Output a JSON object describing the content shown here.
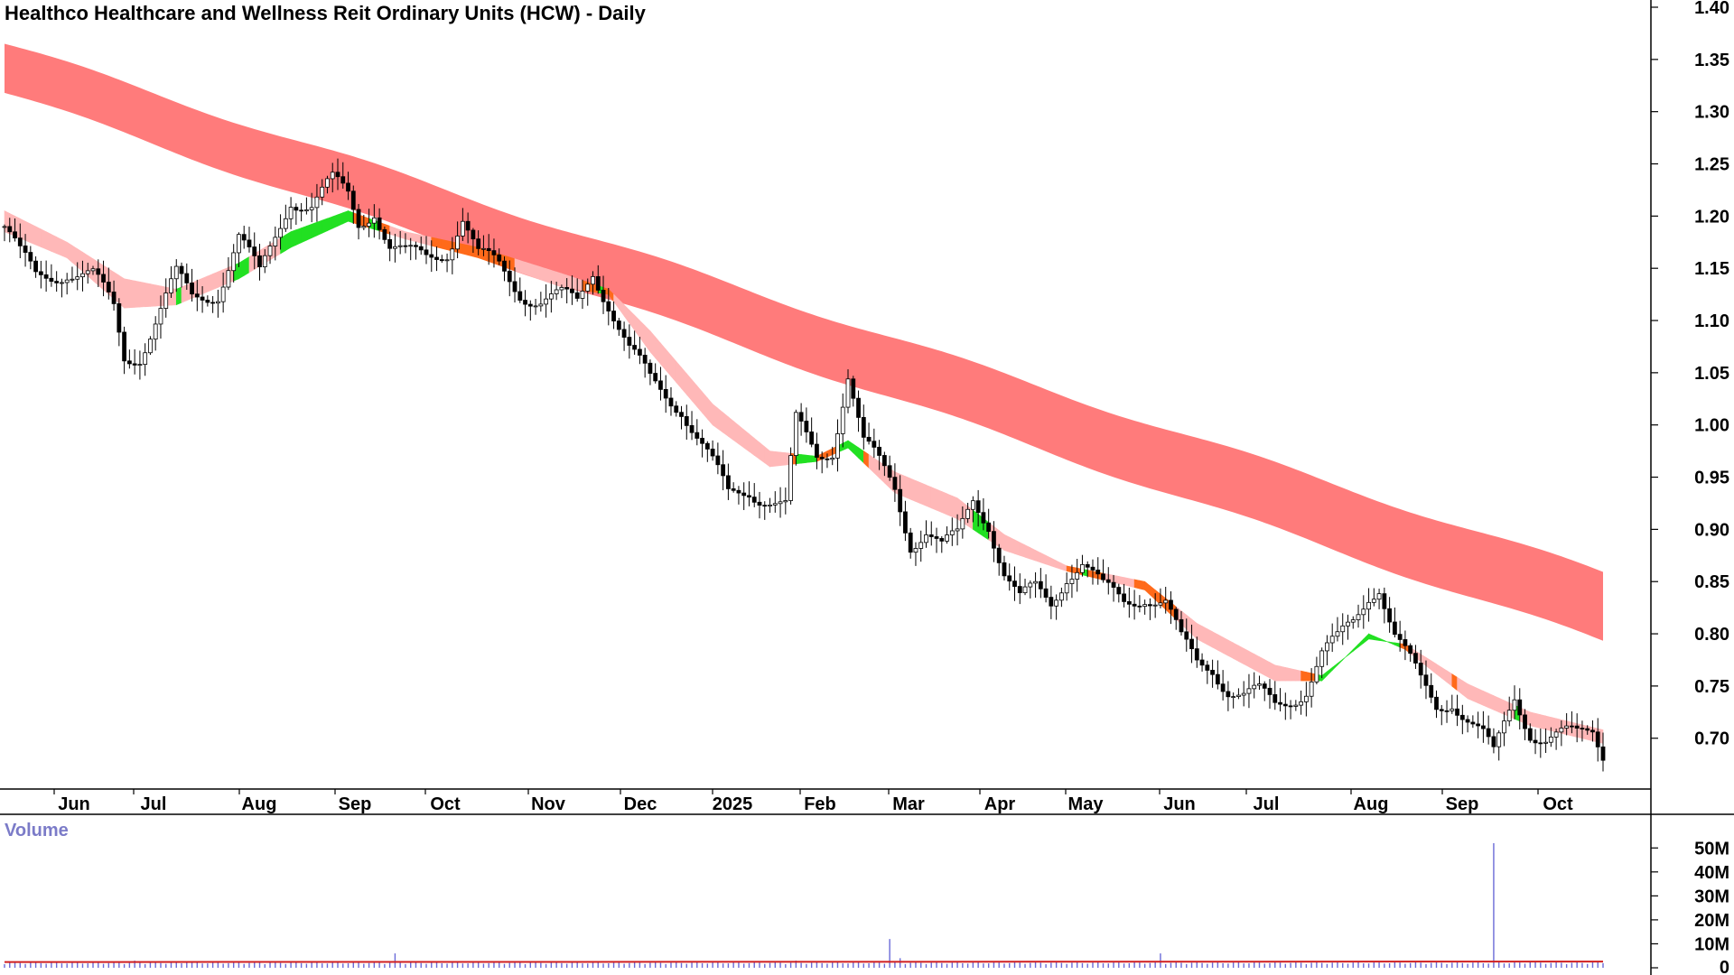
{
  "chart_data": [
    {
      "type": "candlestick",
      "title": "Healthco Healthcare and Wellness Reit Ordinary Units (HCW) - Daily",
      "ylim": [
        0.66,
        1.4
      ],
      "y_ticks": [
        "1.40",
        "1.35",
        "1.30",
        "1.25",
        "1.20",
        "1.15",
        "1.10",
        "1.05",
        "1.00",
        "0.95",
        "0.90",
        "0.85",
        "0.80",
        "0.75",
        "0.70"
      ],
      "y_tick_values": [
        1.4,
        1.35,
        1.3,
        1.25,
        1.2,
        1.15,
        1.1,
        1.05,
        1.0,
        0.95,
        0.9,
        0.85,
        0.8,
        0.75,
        0.7
      ],
      "x_ticks": [
        "Jun",
        "Jul",
        "Aug",
        "Sep",
        "Oct",
        "Nov",
        "Dec",
        "2025",
        "Feb",
        "Mar",
        "Apr",
        "May",
        "Jun",
        "Jul",
        "Aug",
        "Sep",
        "Oct"
      ],
      "colors": {
        "long_band": "#ff7b7b",
        "short_band": "#ffb8b8",
        "bullish_ribbon": "#22e022",
        "bearish_ribbon": "#ff6a1a",
        "candle": "#000000"
      },
      "price_path": [
        [
          0,
          1.19
        ],
        [
          3,
          1.16
        ],
        [
          6,
          1.14
        ],
        [
          12,
          1.15
        ],
        [
          17,
          1.14
        ],
        [
          21,
          1.11
        ],
        [
          23,
          1.065
        ],
        [
          26,
          1.07
        ],
        [
          29,
          1.1
        ],
        [
          33,
          1.14
        ],
        [
          36,
          1.12
        ],
        [
          41,
          1.13
        ],
        [
          45,
          1.18
        ],
        [
          49,
          1.14
        ],
        [
          52,
          1.18
        ],
        [
          55,
          1.22
        ],
        [
          59,
          1.21
        ],
        [
          63,
          1.23
        ],
        [
          66,
          1.22
        ],
        [
          68,
          1.195
        ],
        [
          71,
          1.21
        ],
        [
          74,
          1.17
        ],
        [
          77,
          1.16
        ],
        [
          81,
          1.16
        ],
        [
          85,
          1.17
        ],
        [
          88,
          1.2
        ],
        [
          91,
          1.16
        ],
        [
          95,
          1.15
        ],
        [
          99,
          1.13
        ],
        [
          103,
          1.12
        ],
        [
          107,
          1.12
        ],
        [
          110,
          1.115
        ],
        [
          113,
          1.15
        ],
        [
          116,
          1.12
        ],
        [
          120,
          1.07
        ],
        [
          124,
          1.04
        ],
        [
          127,
          1.03
        ],
        [
          130,
          1.02
        ],
        [
          133,
          0.99
        ],
        [
          136,
          0.96
        ],
        [
          139,
          0.93
        ],
        [
          143,
          0.94
        ],
        [
          147,
          0.93
        ],
        [
          150,
          0.92
        ],
        [
          152,
          1.0
        ],
        [
          156,
          0.97
        ],
        [
          159,
          0.98
        ],
        [
          162,
          1.05
        ],
        [
          165,
          0.98
        ],
        [
          168,
          0.96
        ],
        [
          171,
          0.94
        ],
        [
          174,
          0.89
        ],
        [
          177,
          0.9
        ],
        [
          180,
          0.88
        ],
        [
          183,
          0.89
        ],
        [
          186,
          0.93
        ],
        [
          189,
          0.91
        ],
        [
          192,
          0.86
        ],
        [
          195,
          0.83
        ],
        [
          198,
          0.84
        ],
        [
          201,
          0.83
        ],
        [
          204,
          0.86
        ],
        [
          207,
          0.87
        ],
        [
          211,
          0.84
        ],
        [
          215,
          0.83
        ],
        [
          219,
          0.84
        ],
        [
          223,
          0.83
        ],
        [
          226,
          0.79
        ],
        [
          229,
          0.77
        ],
        [
          232,
          0.77
        ],
        [
          235,
          0.75
        ],
        [
          238,
          0.74
        ],
        [
          241,
          0.74
        ],
        [
          244,
          0.73
        ],
        [
          247,
          0.74
        ],
        [
          250,
          0.75
        ],
        [
          253,
          0.78
        ],
        [
          256,
          0.79
        ],
        [
          259,
          0.81
        ],
        [
          262,
          0.84
        ],
        [
          264,
          0.85
        ],
        [
          267,
          0.8
        ],
        [
          269,
          0.78
        ],
        [
          272,
          0.75
        ],
        [
          275,
          0.73
        ],
        [
          278,
          0.74
        ],
        [
          281,
          0.72
        ],
        [
          284,
          0.7
        ],
        [
          286,
          0.68
        ],
        [
          288,
          0.71
        ],
        [
          290,
          0.74
        ],
        [
          293,
          0.71
        ],
        [
          296,
          0.7
        ],
        [
          299,
          0.7
        ],
        [
          302,
          0.7
        ],
        [
          305,
          0.71
        ],
        [
          307,
          0.69
        ]
      ],
      "long_band": {
        "upper_start": 1.365,
        "upper_end": 0.858,
        "lower_start": 1.318,
        "lower_end": 0.792
      },
      "short_band": {
        "points": [
          [
            0,
            1.205,
            1.185
          ],
          [
            12,
            1.175,
            1.16
          ],
          [
            23,
            1.14,
            1.112
          ],
          [
            33,
            1.13,
            1.115
          ],
          [
            45,
            1.155,
            1.14
          ],
          [
            55,
            1.185,
            1.17
          ],
          [
            66,
            1.205,
            1.195
          ],
          [
            77,
            1.185,
            1.178
          ],
          [
            91,
            1.17,
            1.16
          ],
          [
            107,
            1.145,
            1.132
          ],
          [
            116,
            1.13,
            1.125
          ],
          [
            124,
            1.09,
            1.07
          ],
          [
            136,
            1.02,
            1.0
          ],
          [
            147,
            0.975,
            0.96
          ],
          [
            156,
            0.97,
            0.965
          ],
          [
            162,
            0.985,
            0.978
          ],
          [
            171,
            0.955,
            0.935
          ],
          [
            183,
            0.93,
            0.91
          ],
          [
            192,
            0.895,
            0.88
          ],
          [
            204,
            0.865,
            0.86
          ],
          [
            219,
            0.85,
            0.842
          ],
          [
            229,
            0.81,
            0.795
          ],
          [
            244,
            0.77,
            0.755
          ],
          [
            253,
            0.76,
            0.755
          ],
          [
            262,
            0.795,
            0.8
          ],
          [
            269,
            0.79,
            0.785
          ],
          [
            281,
            0.752,
            0.738
          ],
          [
            293,
            0.725,
            0.712
          ],
          [
            307,
            0.708,
            0.695
          ]
        ]
      },
      "volume": {
        "label": "Volume",
        "ylim": [
          0,
          55
        ],
        "y_ticks": [
          "50M",
          "40M",
          "30M",
          "20M",
          "10M",
          "0"
        ],
        "y_tick_values": [
          50,
          40,
          30,
          20,
          10,
          0
        ],
        "baseline": 1.5,
        "spikes": [
          [
            25,
            3
          ],
          [
            35,
            2.5
          ],
          [
            75,
            6
          ],
          [
            170,
            12
          ],
          [
            172,
            4
          ],
          [
            152,
            3
          ],
          [
            222,
            6
          ],
          [
            286,
            52
          ],
          [
            293,
            2.5
          ],
          [
            305,
            2.5
          ]
        ],
        "colors": {
          "bar": "#6a6ad8",
          "average": "#d02020"
        }
      }
    }
  ]
}
